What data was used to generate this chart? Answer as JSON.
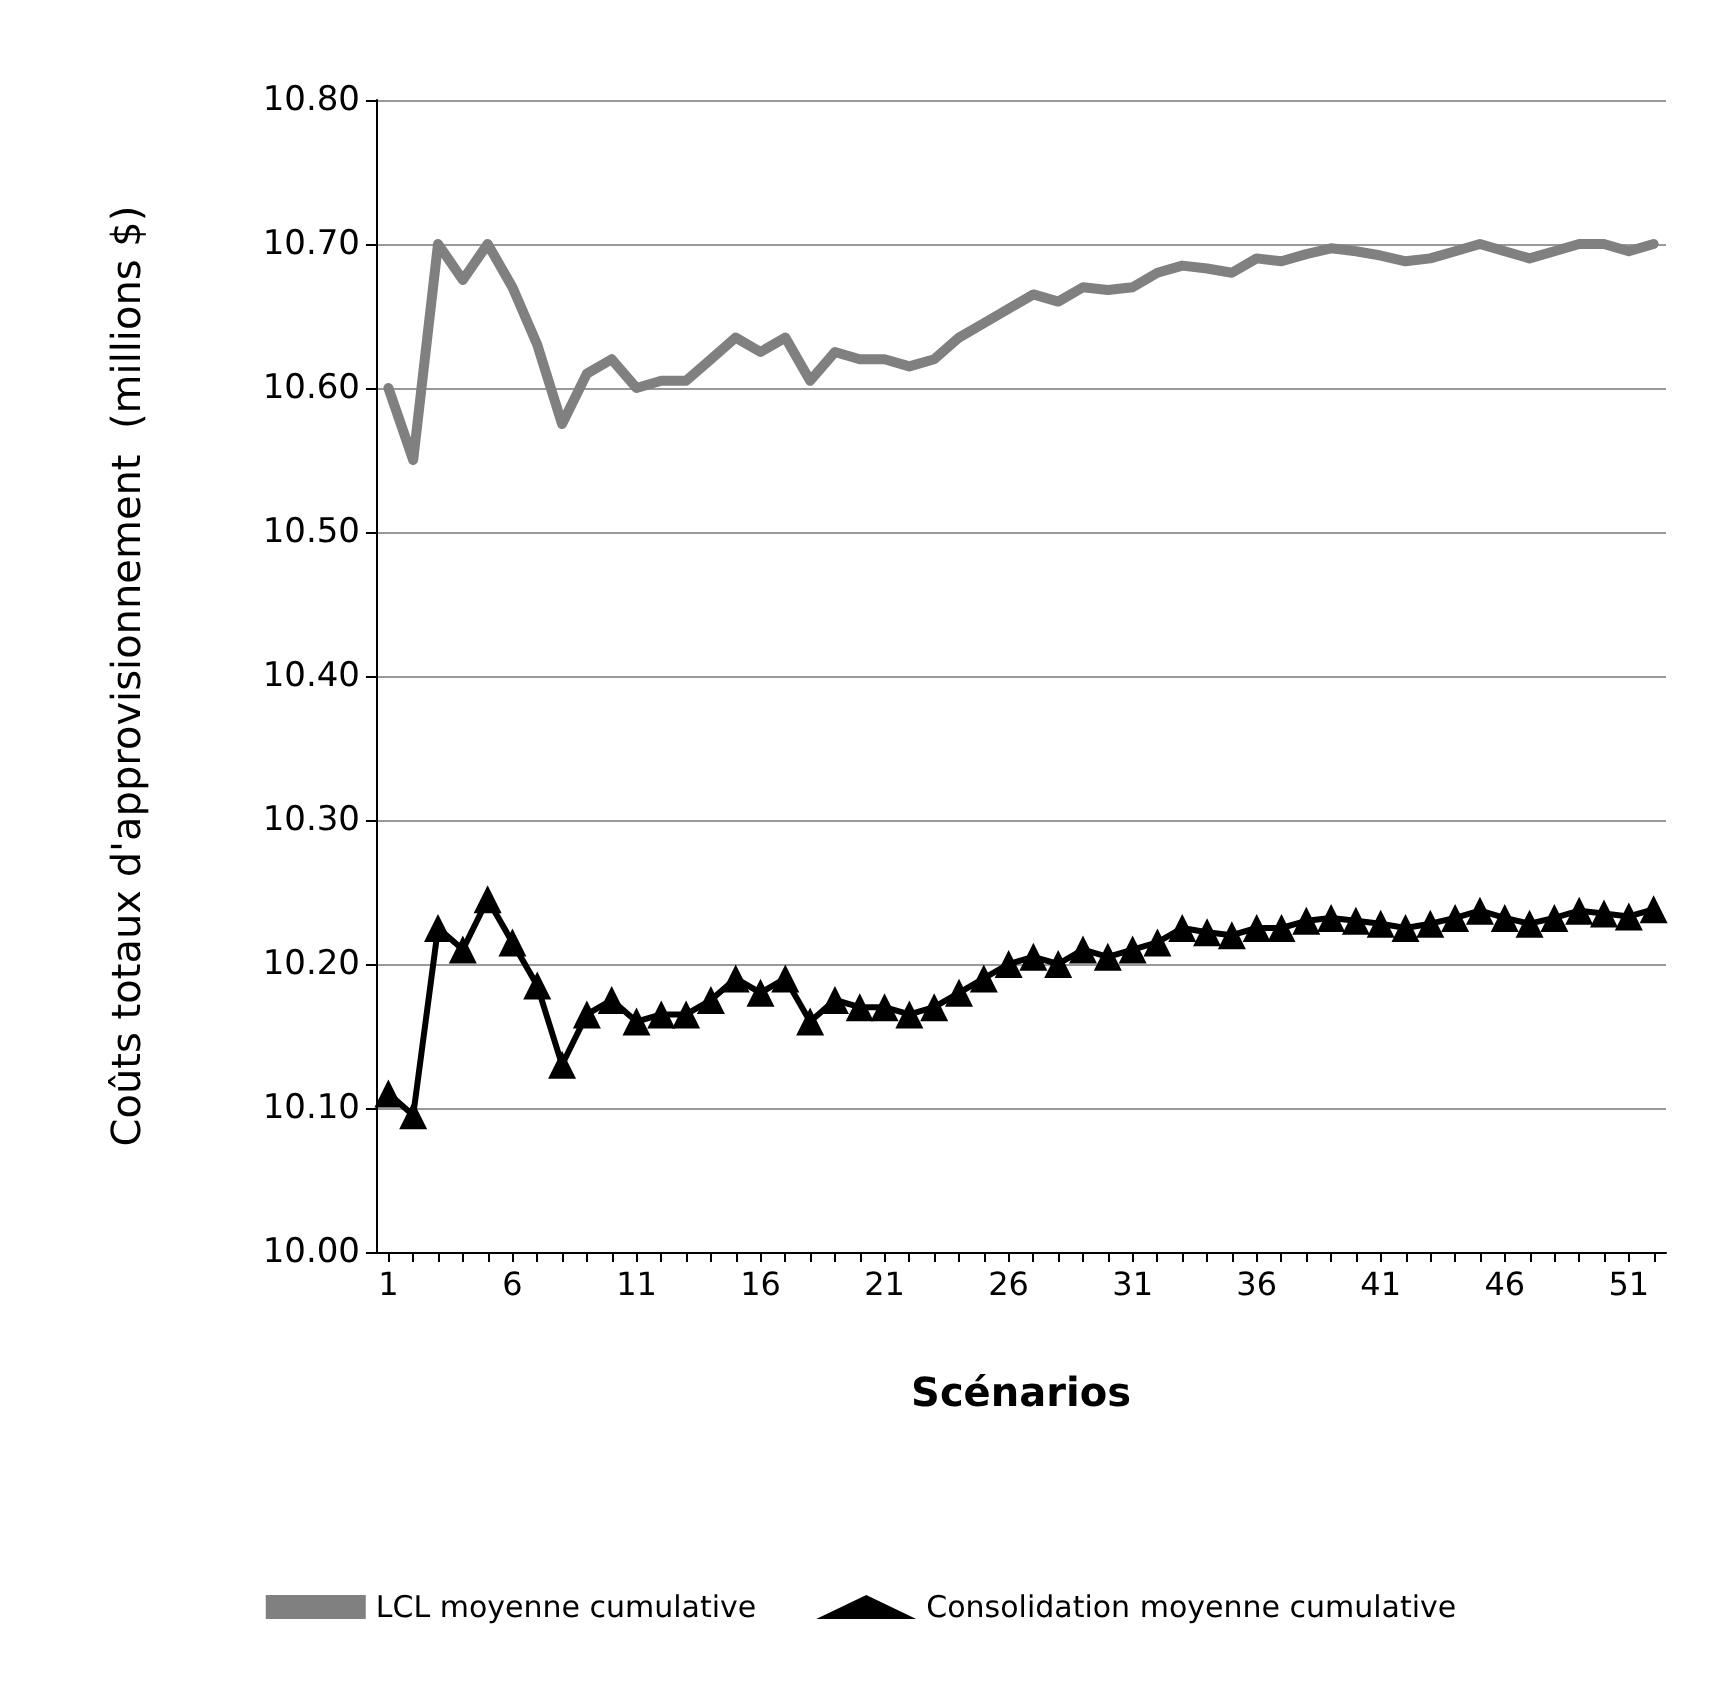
{
  "chart_data": {
    "type": "line",
    "xlabel": "Scénarios",
    "ylabel": "Coûts totaux d'approvisionnement  (millions $)",
    "x": [
      1,
      2,
      3,
      4,
      5,
      6,
      7,
      8,
      9,
      10,
      11,
      12,
      13,
      14,
      15,
      16,
      17,
      18,
      19,
      20,
      21,
      22,
      23,
      24,
      25,
      26,
      27,
      28,
      29,
      30,
      31,
      32,
      33,
      34,
      35,
      36,
      37,
      38,
      39,
      40,
      41,
      42,
      43,
      44,
      45,
      46,
      47,
      48,
      49,
      50,
      51,
      52
    ],
    "xlim": [
      0.5,
      52.5
    ],
    "xticks": [
      1,
      {
        "value": 2,
        "label": null
      },
      {
        "value": 3,
        "label": null
      },
      {
        "value": 4,
        "label": null
      },
      {
        "value": 5,
        "label": null
      },
      6,
      {
        "value": 7,
        "label": null
      },
      {
        "value": 8,
        "label": null
      },
      {
        "value": 9,
        "label": null
      },
      {
        "value": 10,
        "label": null
      },
      11,
      {
        "value": 12,
        "label": null
      },
      {
        "value": 13,
        "label": null
      },
      {
        "value": 14,
        "label": null
      },
      {
        "value": 15,
        "label": null
      },
      16,
      {
        "value": 17,
        "label": null
      },
      {
        "value": 18,
        "label": null
      },
      {
        "value": 19,
        "label": null
      },
      {
        "value": 20,
        "label": null
      },
      21,
      {
        "value": 22,
        "label": null
      },
      {
        "value": 23,
        "label": null
      },
      {
        "value": 24,
        "label": null
      },
      {
        "value": 25,
        "label": null
      },
      26,
      {
        "value": 27,
        "label": null
      },
      {
        "value": 28,
        "label": null
      },
      {
        "value": 29,
        "label": null
      },
      {
        "value": 30,
        "label": null
      },
      31,
      {
        "value": 32,
        "label": null
      },
      {
        "value": 33,
        "label": null
      },
      {
        "value": 34,
        "label": null
      },
      {
        "value": 35,
        "label": null
      },
      36,
      {
        "value": 37,
        "label": null
      },
      {
        "value": 38,
        "label": null
      },
      {
        "value": 39,
        "label": null
      },
      {
        "value": 40,
        "label": null
      },
      41,
      {
        "value": 42,
        "label": null
      },
      {
        "value": 43,
        "label": null
      },
      {
        "value": 44,
        "label": null
      },
      {
        "value": 45,
        "label": null
      },
      46,
      {
        "value": 47,
        "label": null
      },
      {
        "value": 48,
        "label": null
      },
      {
        "value": 49,
        "label": null
      },
      {
        "value": 50,
        "label": null
      },
      51,
      {
        "value": 52,
        "label": null
      }
    ],
    "ylim": [
      10.0,
      10.8
    ],
    "yticks": [
      {
        "value": 10.0,
        "label": "10.00"
      },
      {
        "value": 10.1,
        "label": "10.10"
      },
      {
        "value": 10.2,
        "label": "10.20"
      },
      {
        "value": 10.3,
        "label": "10.30"
      },
      {
        "value": 10.4,
        "label": "10.40"
      },
      {
        "value": 10.5,
        "label": "10.50"
      },
      {
        "value": 10.6,
        "label": "10.60"
      },
      {
        "value": 10.7,
        "label": "10.70"
      },
      {
        "value": 10.8,
        "label": "10.80"
      }
    ],
    "grid": "y",
    "legend": "bottom",
    "series": [
      {
        "name": "LCL moyenne cumulative",
        "color": "#808080",
        "marker": "none",
        "values": [
          10.6,
          10.55,
          10.7,
          10.675,
          10.7,
          10.67,
          10.63,
          10.575,
          10.61,
          10.62,
          10.6,
          10.605,
          10.605,
          10.62,
          10.635,
          10.625,
          10.635,
          10.605,
          10.625,
          10.62,
          10.62,
          10.615,
          10.62,
          10.635,
          10.645,
          10.655,
          10.665,
          10.66,
          10.67,
          10.668,
          10.67,
          10.68,
          10.685,
          10.683,
          10.68,
          10.69,
          10.688,
          10.693,
          10.697,
          10.695,
          10.692,
          10.688,
          10.69,
          10.695,
          10.7,
          10.695,
          10.69,
          10.695,
          10.7,
          10.7,
          10.695,
          10.7
        ]
      },
      {
        "name": "Consolidation moyenne cumulative",
        "color": "#000000",
        "marker": "triangle",
        "values": [
          10.11,
          10.095,
          10.225,
          10.21,
          10.245,
          10.215,
          10.185,
          10.13,
          10.165,
          10.175,
          10.16,
          10.165,
          10.165,
          10.175,
          10.19,
          10.18,
          10.19,
          10.16,
          10.175,
          10.17,
          10.17,
          10.165,
          10.17,
          10.18,
          10.19,
          10.2,
          10.205,
          10.2,
          10.21,
          10.205,
          10.21,
          10.215,
          10.225,
          10.222,
          10.22,
          10.225,
          10.225,
          10.23,
          10.232,
          10.23,
          10.228,
          10.225,
          10.228,
          10.232,
          10.237,
          10.232,
          10.228,
          10.232,
          10.237,
          10.235,
          10.233,
          10.238
        ]
      }
    ]
  }
}
